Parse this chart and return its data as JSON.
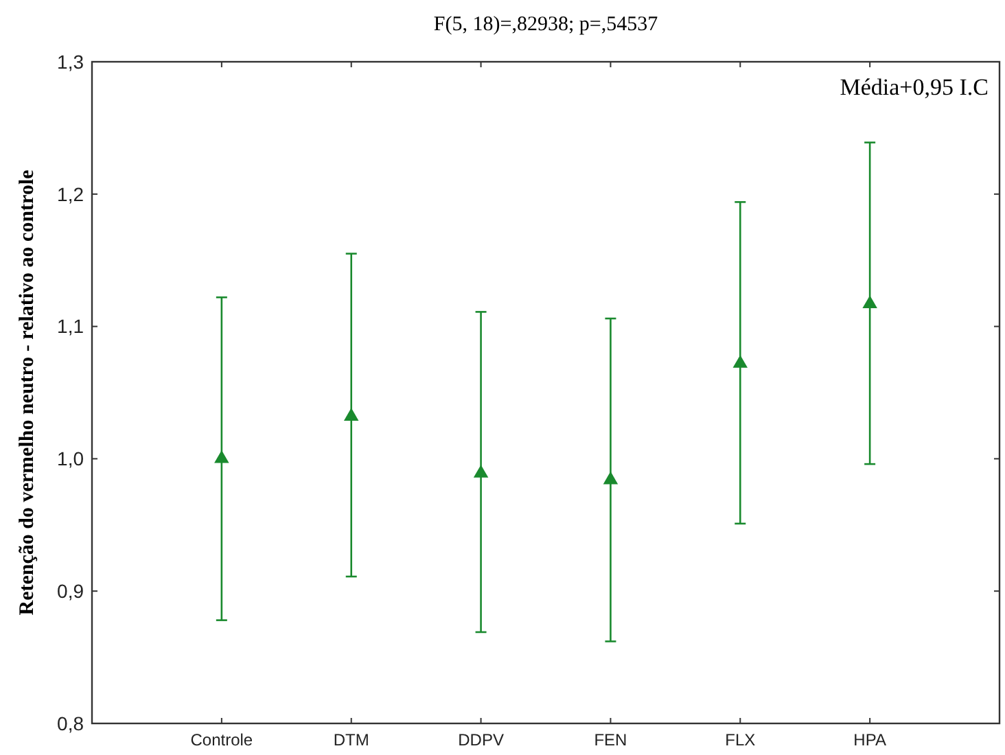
{
  "chart_data": {
    "type": "scatter",
    "title": "F(5, 18)=,82938; p=,54537",
    "ylabel": "Retenção do vermelho neutro - relativo ao controle",
    "annotations": [
      "Média+0,95 I.C"
    ],
    "categories": [
      "Controle",
      "DTM",
      "DDPV",
      "FEN",
      "FLX",
      "HPA"
    ],
    "values": [
      1.0,
      1.032,
      0.989,
      0.984,
      1.072,
      1.117
    ],
    "errors": [
      [
        0.878,
        1.122
      ],
      [
        0.911,
        1.155
      ],
      [
        0.869,
        1.111
      ],
      [
        0.862,
        1.106
      ],
      [
        0.951,
        1.194
      ],
      [
        0.996,
        1.239
      ]
    ],
    "color": "#1a8a2e",
    "marker": "triangle",
    "grid": false,
    "ylim": [
      0.8,
      1.3
    ],
    "yticks": [
      {
        "value": 0.8,
        "label": "0,8"
      },
      {
        "value": 0.9,
        "label": "0,9"
      },
      {
        "value": 1.0,
        "label": "1,0"
      },
      {
        "value": 1.1,
        "label": "1,1"
      },
      {
        "value": 1.2,
        "label": "1,2"
      },
      {
        "value": 1.3,
        "label": "1,3"
      }
    ]
  }
}
